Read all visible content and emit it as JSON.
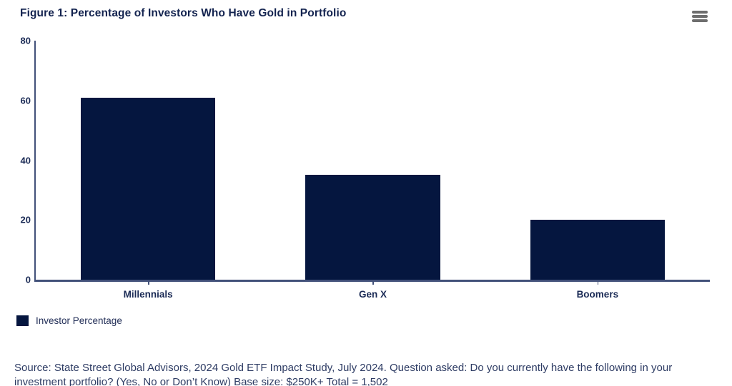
{
  "header": {
    "title": "Figure 1: Percentage of Investors Who Have Gold in Portfolio"
  },
  "menu": {
    "icon": "hamburger-menu-icon",
    "color": "#6e6e6e"
  },
  "chart_data": {
    "type": "bar",
    "title": "Figure 1: Percentage of Investors Who Have Gold in Portfolio",
    "categories": [
      "Millennials",
      "Gen X",
      "Boomers"
    ],
    "series": [
      {
        "name": "Investor Percentage",
        "values": [
          61,
          35,
          20
        ]
      }
    ],
    "xlabel": "",
    "ylabel": "",
    "ylim": [
      0,
      80
    ],
    "yticks": [
      0,
      20,
      40,
      60,
      80
    ],
    "grid": false,
    "legend_position": "bottom-left",
    "bar_color": "#05163f",
    "axis_color": "#42517a"
  },
  "legend": {
    "label": "Investor Percentage",
    "swatch_color": "#05163f"
  },
  "source": {
    "text": "Source: State Street Global Advisors, 2024 Gold ETF Impact Study, July 2024. Question asked: Do you currently have the following in your investment portfolio? (Yes, No or Don’t Know) Base size: $250K+ Total = 1,502"
  }
}
